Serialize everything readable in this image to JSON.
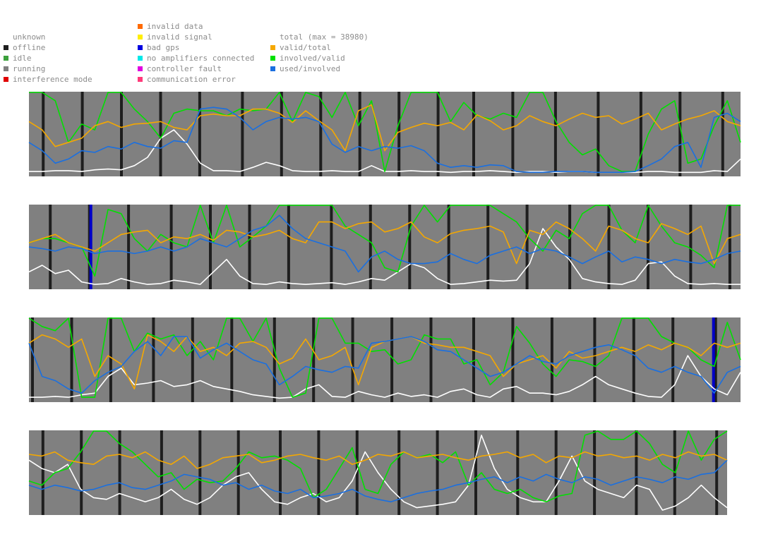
{
  "legend": {
    "status": [
      {
        "label": "unknown",
        "color": null
      },
      {
        "label": "offline",
        "color": "#1e1e1e"
      },
      {
        "label": "idle",
        "color": "#3ca03c"
      },
      {
        "label": "running",
        "color": "#808080"
      },
      {
        "label": "interference mode",
        "color": "#e00000"
      }
    ],
    "errors": [
      {
        "label": "invalid data",
        "color": "#ff6a00"
      },
      {
        "label": "invalid signal",
        "color": "#ffee00"
      },
      {
        "label": "bad gps",
        "color": "#0000e0"
      },
      {
        "label": "no amplifiers connected",
        "color": "#00e8e8"
      },
      {
        "label": "controller fault",
        "color": "#e000e0"
      },
      {
        "label": "communication error",
        "color": "#ff3a7a"
      }
    ],
    "series": [
      {
        "label": "total (max = 38980)",
        "color": null
      },
      {
        "label": "valid/total",
        "color": "#f5a800"
      },
      {
        "label": "involved/valid",
        "color": "#00e000"
      },
      {
        "label": "used/involved",
        "color": "#1a6fe0"
      }
    ]
  },
  "colors": {
    "running": "#808080",
    "offline": "#1e1e1e",
    "bad_gps": "#0000c8",
    "total": "#ffffff",
    "valid_total": "#f5a800",
    "involved_valid": "#00e000",
    "used_involved": "#1a6fe0"
  },
  "chart_data": {
    "type": "line",
    "y_range": [
      0,
      1
    ],
    "total_max": 38980,
    "panels": [
      {
        "offline_marks": [
          0.02,
          0.075,
          0.13,
          0.185,
          0.24,
          0.3,
          0.355,
          0.41,
          0.465,
          0.52,
          0.575,
          0.625,
          0.68,
          0.74,
          0.8,
          0.86,
          0.915,
          0.975
        ],
        "bad_gps_marks": [],
        "series": {
          "total": [
            0.05,
            0.05,
            0.06,
            0.06,
            0.05,
            0.07,
            0.08,
            0.07,
            0.12,
            0.22,
            0.45,
            0.55,
            0.38,
            0.15,
            0.06,
            0.06,
            0.05,
            0.1,
            0.16,
            0.12,
            0.06,
            0.05,
            0.05,
            0.06,
            0.05,
            0.05,
            0.12,
            0.05,
            0.05,
            0.06,
            0.05,
            0.05,
            0.04,
            0.05,
            0.05,
            0.06,
            0.05,
            0.04,
            0.05,
            0.05,
            0.04,
            0.05,
            0.05,
            0.04,
            0.04,
            0.04,
            0.04,
            0.05,
            0.05,
            0.04,
            0.04,
            0.04,
            0.06,
            0.05,
            0.2
          ],
          "valid_total": [
            0.65,
            0.55,
            0.35,
            0.4,
            0.45,
            0.6,
            0.65,
            0.58,
            0.62,
            0.63,
            0.65,
            0.58,
            0.55,
            0.72,
            0.74,
            0.72,
            0.72,
            0.8,
            0.8,
            0.75,
            0.64,
            0.78,
            0.66,
            0.55,
            0.3,
            0.78,
            0.85,
            0.3,
            0.52,
            0.58,
            0.63,
            0.6,
            0.64,
            0.55,
            0.73,
            0.66,
            0.55,
            0.6,
            0.72,
            0.65,
            0.6,
            0.68,
            0.75,
            0.7,
            0.72,
            0.62,
            0.68,
            0.75,
            0.55,
            0.62,
            0.68,
            0.72,
            0.78,
            0.65,
            0.6
          ],
          "involved_valid": [
            1,
            1,
            0.9,
            0.4,
            0.62,
            0.55,
            1,
            1,
            0.8,
            0.65,
            0.45,
            0.75,
            0.8,
            0.78,
            0.78,
            0.72,
            0.8,
            0.78,
            0.8,
            1,
            0.65,
            1,
            0.95,
            0.7,
            1,
            0.6,
            0.9,
            0.05,
            0.6,
            1,
            1,
            1,
            0.65,
            0.88,
            0.72,
            0.68,
            0.75,
            0.7,
            1,
            1,
            0.65,
            0.4,
            0.25,
            0.32,
            0.12,
            0.05,
            0.05,
            0.5,
            0.8,
            0.9,
            0.15,
            0.2,
            0.6,
            0.9,
            0.4
          ],
          "used_involved": [
            0.4,
            0.3,
            0.15,
            0.2,
            0.3,
            0.28,
            0.35,
            0.32,
            0.4,
            0.35,
            0.33,
            0.42,
            0.4,
            0.8,
            0.82,
            0.8,
            0.7,
            0.55,
            0.65,
            0.7,
            0.68,
            0.7,
            0.65,
            0.38,
            0.28,
            0.35,
            0.3,
            0.35,
            0.33,
            0.36,
            0.3,
            0.15,
            0.1,
            0.12,
            0.1,
            0.13,
            0.12,
            0.05,
            0.04,
            0.04,
            0.05,
            0.05,
            0.05,
            0.04,
            0.04,
            0.04,
            0.05,
            0.12,
            0.2,
            0.35,
            0.4,
            0.1,
            0.7,
            0.75,
            0.65
          ]
        }
      },
      {
        "offline_marks": [
          0.03,
          0.085,
          0.14,
          0.2,
          0.255,
          0.31,
          0.365,
          0.425,
          0.48,
          0.535,
          0.59,
          0.645,
          0.7,
          0.76,
          0.815,
          0.87,
          0.93,
          0.985
        ],
        "bad_gps_marks": [
          0.087
        ],
        "series": {
          "total": [
            0.2,
            0.28,
            0.18,
            0.22,
            0.08,
            0.05,
            0.06,
            0.12,
            0.08,
            0.05,
            0.06,
            0.1,
            0.08,
            0.05,
            0.2,
            0.35,
            0.15,
            0.06,
            0.05,
            0.08,
            0.06,
            0.05,
            0.06,
            0.07,
            0.05,
            0.08,
            0.12,
            0.1,
            0.2,
            0.3,
            0.25,
            0.12,
            0.05,
            0.06,
            0.08,
            0.1,
            0.09,
            0.1,
            0.3,
            0.72,
            0.5,
            0.35,
            0.12,
            0.08,
            0.06,
            0.05,
            0.1,
            0.3,
            0.32,
            0.15,
            0.06,
            0.05,
            0.06,
            0.05,
            0.05
          ],
          "valid_total": [
            0.55,
            0.6,
            0.65,
            0.55,
            0.5,
            0.45,
            0.55,
            0.65,
            0.68,
            0.7,
            0.55,
            0.62,
            0.6,
            0.65,
            0.58,
            0.7,
            0.68,
            0.62,
            0.65,
            0.7,
            0.6,
            0.55,
            0.8,
            0.8,
            0.72,
            0.78,
            0.8,
            0.68,
            0.72,
            0.8,
            0.62,
            0.55,
            0.66,
            0.7,
            0.72,
            0.75,
            0.68,
            0.3,
            0.7,
            0.65,
            0.8,
            0.72,
            0.6,
            0.45,
            0.75,
            0.7,
            0.6,
            0.55,
            0.78,
            0.72,
            0.65,
            0.75,
            0.3,
            0.6,
            0.65
          ],
          "involved_valid": [
            0.55,
            0.6,
            0.6,
            0.55,
            0.5,
            0.15,
            0.95,
            0.9,
            0.6,
            0.45,
            0.65,
            0.55,
            0.5,
            1,
            0.55,
            1,
            0.5,
            0.62,
            0.75,
            1,
            1,
            1,
            1,
            1,
            0.75,
            0.65,
            0.55,
            0.25,
            0.2,
            0.75,
            1,
            0.8,
            1,
            1,
            1,
            1,
            0.9,
            0.8,
            0.6,
            0.45,
            0.7,
            0.6,
            0.9,
            1,
            1,
            0.7,
            0.55,
            1,
            0.75,
            0.55,
            0.5,
            0.4,
            0.25,
            1,
            1
          ],
          "used_involved": [
            0.5,
            0.48,
            0.45,
            0.5,
            0.48,
            0.42,
            0.45,
            0.45,
            0.42,
            0.45,
            0.5,
            0.45,
            0.5,
            0.6,
            0.55,
            0.5,
            0.6,
            0.7,
            0.75,
            0.88,
            0.72,
            0.6,
            0.55,
            0.5,
            0.45,
            0.2,
            0.38,
            0.45,
            0.35,
            0.3,
            0.3,
            0.32,
            0.42,
            0.35,
            0.3,
            0.4,
            0.45,
            0.5,
            0.42,
            0.48,
            0.45,
            0.38,
            0.3,
            0.38,
            0.45,
            0.32,
            0.38,
            0.35,
            0.3,
            0.35,
            0.32,
            0.3,
            0.35,
            0.42,
            0.45
          ]
        }
      },
      {
        "offline_marks": [
          0.005,
          0.06,
          0.115,
          0.175,
          0.23,
          0.285,
          0.345,
          0.4,
          0.455,
          0.51,
          0.565,
          0.625,
          0.68,
          0.735,
          0.795,
          0.85,
          0.905,
          0.965
        ],
        "bad_gps_marks": [
          0.962
        ],
        "series": {
          "total": [
            0.05,
            0.05,
            0.06,
            0.05,
            0.08,
            0.1,
            0.3,
            0.4,
            0.2,
            0.22,
            0.25,
            0.18,
            0.2,
            0.25,
            0.18,
            0.15,
            0.12,
            0.08,
            0.06,
            0.04,
            0.05,
            0.15,
            0.2,
            0.06,
            0.05,
            0.12,
            0.08,
            0.05,
            0.1,
            0.06,
            0.08,
            0.05,
            0.12,
            0.15,
            0.08,
            0.05,
            0.15,
            0.18,
            0.1,
            0.1,
            0.08,
            0.12,
            0.2,
            0.3,
            0.2,
            0.15,
            0.1,
            0.06,
            0.05,
            0.2,
            0.55,
            0.3,
            0.15,
            0.08,
            0.35
          ],
          "valid_total": [
            0.7,
            0.8,
            0.75,
            0.65,
            0.75,
            0.3,
            0.55,
            0.45,
            0.15,
            0.8,
            0.72,
            0.6,
            0.78,
            0.6,
            0.65,
            0.55,
            0.7,
            0.72,
            0.65,
            0.45,
            0.52,
            0.75,
            0.5,
            0.55,
            0.65,
            0.2,
            0.65,
            0.72,
            0.75,
            0.78,
            0.7,
            0.68,
            0.65,
            0.65,
            0.6,
            0.55,
            0.3,
            0.45,
            0.5,
            0.55,
            0.4,
            0.6,
            0.52,
            0.55,
            0.6,
            0.65,
            0.6,
            0.68,
            0.62,
            0.7,
            0.65,
            0.55,
            0.7,
            0.65,
            0.7
          ],
          "involved_valid": [
            1,
            0.9,
            0.85,
            1,
            0.05,
            0.05,
            1,
            1,
            0.6,
            0.82,
            0.75,
            0.8,
            0.55,
            0.72,
            0.5,
            1,
            1,
            0.72,
            1,
            0.4,
            0.05,
            0.1,
            1,
            1,
            0.7,
            0.7,
            0.6,
            0.62,
            0.45,
            0.5,
            0.8,
            0.75,
            0.75,
            0.45,
            0.5,
            0.2,
            0.35,
            0.9,
            0.7,
            0.45,
            0.3,
            0.5,
            0.48,
            0.42,
            0.55,
            1,
            1,
            1,
            0.78,
            0.7,
            0.65,
            0.5,
            0.42,
            0.95,
            0.5
          ],
          "used_involved": [
            0.7,
            0.3,
            0.25,
            0.15,
            0.1,
            0.25,
            0.35,
            0.42,
            0.6,
            0.72,
            0.55,
            0.78,
            0.78,
            0.52,
            0.62,
            0.7,
            0.6,
            0.5,
            0.45,
            0.2,
            0.3,
            0.42,
            0.38,
            0.35,
            0.42,
            0.4,
            0.7,
            0.72,
            0.75,
            0.78,
            0.72,
            0.62,
            0.6,
            0.5,
            0.4,
            0.3,
            0.35,
            0.45,
            0.55,
            0.48,
            0.45,
            0.55,
            0.6,
            0.65,
            0.68,
            0.62,
            0.55,
            0.4,
            0.35,
            0.42,
            0.35,
            0.3,
            0.1,
            0.35,
            0.42
          ]
        }
      },
      {
        "offline_marks": [
          0.02,
          0.075,
          0.13,
          0.19,
          0.245,
          0.3,
          0.36,
          0.415,
          0.47,
          0.53,
          0.585,
          0.64,
          0.7,
          0.755,
          0.81,
          0.87,
          0.925,
          0.985
        ],
        "bad_gps_marks": [],
        "series": {
          "total": [
            0.65,
            0.55,
            0.5,
            0.6,
            0.3,
            0.2,
            0.18,
            0.25,
            0.2,
            0.15,
            0.2,
            0.3,
            0.18,
            0.12,
            0.2,
            0.35,
            0.45,
            0.5,
            0.3,
            0.15,
            0.12,
            0.2,
            0.25,
            0.15,
            0.2,
            0.4,
            0.75,
            0.5,
            0.3,
            0.15,
            0.08,
            0.1,
            0.12,
            0.15,
            0.35,
            0.95,
            0.55,
            0.3,
            0.2,
            0.15,
            0.15,
            0.4,
            0.7,
            0.4,
            0.3,
            0.25,
            0.2,
            0.35,
            0.3,
            0.05,
            0.1,
            0.2,
            0.35,
            0.2,
            0.08
          ],
          "valid_total": [
            0.72,
            0.7,
            0.75,
            0.65,
            0.62,
            0.6,
            0.7,
            0.72,
            0.68,
            0.75,
            0.65,
            0.6,
            0.7,
            0.55,
            0.6,
            0.68,
            0.7,
            0.72,
            0.62,
            0.65,
            0.7,
            0.72,
            0.68,
            0.65,
            0.7,
            0.6,
            0.65,
            0.72,
            0.7,
            0.75,
            0.68,
            0.7,
            0.72,
            0.68,
            0.65,
            0.7,
            0.72,
            0.75,
            0.68,
            0.72,
            0.62,
            0.7,
            0.68,
            0.75,
            0.7,
            0.72,
            0.68,
            0.7,
            0.65,
            0.72,
            0.68,
            0.75,
            0.7,
            0.72,
            0.65
          ],
          "involved_valid": [
            0.4,
            0.35,
            0.5,
            0.55,
            0.75,
            1,
            1,
            0.85,
            0.75,
            0.6,
            0.45,
            0.5,
            0.3,
            0.42,
            0.38,
            0.4,
            0.55,
            0.75,
            0.68,
            0.7,
            0.65,
            0.55,
            0.2,
            0.3,
            0.55,
            0.8,
            0.3,
            0.25,
            0.6,
            0.75,
            0.68,
            0.72,
            0.62,
            0.75,
            0.35,
            0.5,
            0.3,
            0.25,
            0.3,
            0.2,
            0.15,
            0.22,
            0.25,
            0.95,
            1,
            0.9,
            0.9,
            1,
            0.85,
            0.6,
            0.5,
            1,
            0.65,
            0.9,
            1
          ],
          "used_involved": [
            0.35,
            0.3,
            0.35,
            0.32,
            0.28,
            0.3,
            0.35,
            0.38,
            0.32,
            0.3,
            0.35,
            0.4,
            0.48,
            0.45,
            0.42,
            0.35,
            0.38,
            0.3,
            0.35,
            0.28,
            0.25,
            0.3,
            0.2,
            0.22,
            0.25,
            0.3,
            0.22,
            0.18,
            0.15,
            0.2,
            0.25,
            0.28,
            0.3,
            0.35,
            0.38,
            0.42,
            0.45,
            0.38,
            0.45,
            0.4,
            0.48,
            0.42,
            0.38,
            0.45,
            0.42,
            0.35,
            0.4,
            0.45,
            0.42,
            0.38,
            0.45,
            0.42,
            0.48,
            0.5,
            0.65
          ]
        }
      }
    ]
  }
}
